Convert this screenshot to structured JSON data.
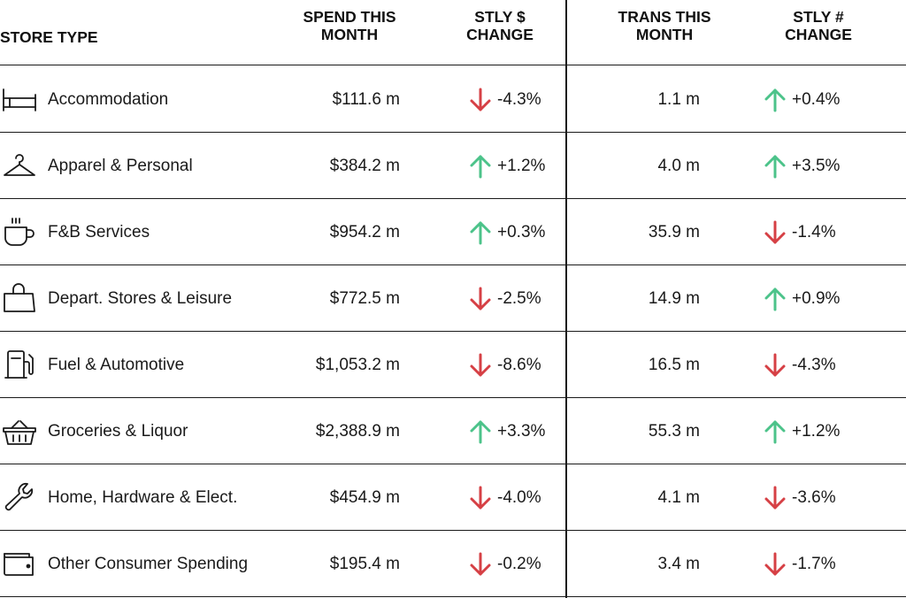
{
  "headers": {
    "store_type": "STORE TYPE",
    "spend_line1": "SPEND THIS",
    "spend_line2": "MONTH",
    "stly_dollar_line1": "STLY $",
    "stly_dollar_line2": "CHANGE",
    "trans_line1": "TRANS THIS",
    "trans_line2": "MONTH",
    "stly_num_line1": "STLY #",
    "stly_num_line2": "CHANGE"
  },
  "colors": {
    "up": "#4cc38a",
    "down": "#d64045",
    "text": "#1a1a1a"
  },
  "rows": [
    {
      "icon": "bed-icon",
      "store_type": "Accommodation",
      "spend": "$111.6 m",
      "stly_dollar": "-4.3%",
      "stly_dollar_dir": "down",
      "trans": "1.1 m",
      "stly_num": "+0.4%",
      "stly_num_dir": "up"
    },
    {
      "icon": "hanger-icon",
      "store_type": "Apparel & Personal",
      "spend": "$384.2 m",
      "stly_dollar": "+1.2%",
      "stly_dollar_dir": "up",
      "trans": "4.0 m",
      "stly_num": "+3.5%",
      "stly_num_dir": "up"
    },
    {
      "icon": "coffee-cup-icon",
      "store_type": "F&B Services",
      "spend": "$954.2 m",
      "stly_dollar": "+0.3%",
      "stly_dollar_dir": "up",
      "trans": "35.9 m",
      "stly_num": "-1.4%",
      "stly_num_dir": "down"
    },
    {
      "icon": "shopping-bag-icon",
      "store_type": "Depart. Stores & Leisure",
      "spend": "$772.5 m",
      "stly_dollar": "-2.5%",
      "stly_dollar_dir": "down",
      "trans": "14.9 m",
      "stly_num": "+0.9%",
      "stly_num_dir": "up"
    },
    {
      "icon": "fuel-pump-icon",
      "store_type": "Fuel & Automotive",
      "spend": "$1,053.2 m",
      "stly_dollar": "-8.6%",
      "stly_dollar_dir": "down",
      "trans": "16.5 m",
      "stly_num": "-4.3%",
      "stly_num_dir": "down"
    },
    {
      "icon": "basket-icon",
      "store_type": "Groceries & Liquor",
      "spend": "$2,388.9 m",
      "stly_dollar": "+3.3%",
      "stly_dollar_dir": "up",
      "trans": "55.3 m",
      "stly_num": "+1.2%",
      "stly_num_dir": "up"
    },
    {
      "icon": "wrench-icon",
      "store_type": "Home, Hardware & Elect.",
      "spend": "$454.9 m",
      "stly_dollar": "-4.0%",
      "stly_dollar_dir": "down",
      "trans": "4.1 m",
      "stly_num": "-3.6%",
      "stly_num_dir": "down"
    },
    {
      "icon": "wallet-icon",
      "store_type": "Other Consumer Spending",
      "spend": "$195.4 m",
      "stly_dollar": "-0.2%",
      "stly_dollar_dir": "down",
      "trans": "3.4 m",
      "stly_num": "-1.7%",
      "stly_num_dir": "down"
    }
  ]
}
